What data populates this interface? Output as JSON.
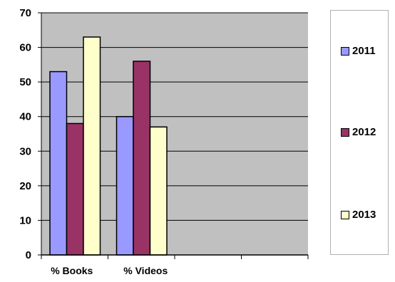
{
  "chart_data": {
    "type": "bar",
    "categories": [
      "% Books",
      "% Videos",
      "",
      ""
    ],
    "series": [
      {
        "name": "2011",
        "values": [
          53,
          40,
          null,
          null
        ],
        "color": "#9999ff"
      },
      {
        "name": "2012",
        "values": [
          38,
          56,
          null,
          null
        ],
        "color": "#993366"
      },
      {
        "name": "2013",
        "values": [
          63,
          37,
          null,
          null
        ],
        "color": "#ffffcc"
      }
    ],
    "ylim": [
      0,
      70
    ],
    "yticks": [
      0,
      10,
      20,
      30,
      40,
      50,
      60,
      70
    ],
    "grid": true,
    "plot_background": "#c0c0c0",
    "legend_position": "right"
  }
}
